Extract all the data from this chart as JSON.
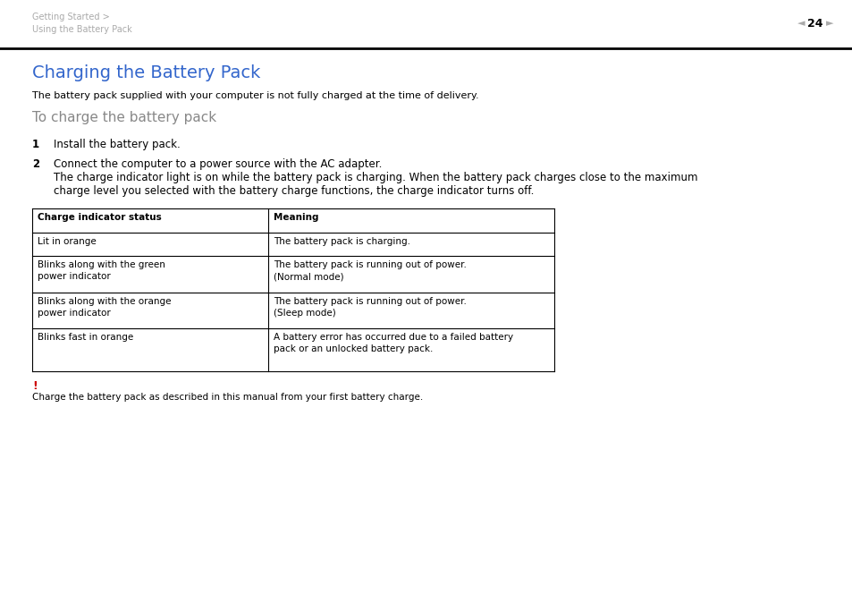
{
  "bg_color": "#ffffff",
  "header_breadcrumb_line1": "Getting Started >",
  "header_breadcrumb_line2": "Using the Battery Pack",
  "page_number": "24",
  "title": "Charging the Battery Pack",
  "title_color": "#3366cc",
  "intro_text": "The battery pack supplied with your computer is not fully charged at the time of delivery.",
  "subtitle": "To charge the battery pack",
  "subtitle_color": "#888888",
  "step1_num": "1",
  "step1_text": "Install the battery pack.",
  "step2_num": "2",
  "step2_text_line1": "Connect the computer to a power source with the AC adapter.",
  "step2_text_line2": "The charge indicator light is on while the battery pack is charging. When the battery pack charges close to the maximum",
  "step2_text_line3": "charge level you selected with the battery charge functions, the charge indicator turns off.",
  "table_header_col1": "Charge indicator status",
  "table_header_col2": "Meaning",
  "table_rows": [
    [
      "Lit in orange",
      "The battery pack is charging."
    ],
    [
      "Blinks along with the green\npower indicator",
      "The battery pack is running out of power.\n(Normal mode)"
    ],
    [
      "Blinks along with the orange\npower indicator",
      "The battery pack is running out of power.\n(Sleep mode)"
    ],
    [
      "Blinks fast in orange",
      "A battery error has occurred due to a failed battery\npack or an unlocked battery pack."
    ]
  ],
  "warning_exclamation": "!",
  "warning_exclamation_color": "#cc0000",
  "warning_text": "Charge the battery pack as described in this manual from your first battery charge.",
  "breadcrumb_color": "#aaaaaa",
  "text_color": "#000000",
  "header_line_color": "#000000",
  "table_line_color": "#000000"
}
